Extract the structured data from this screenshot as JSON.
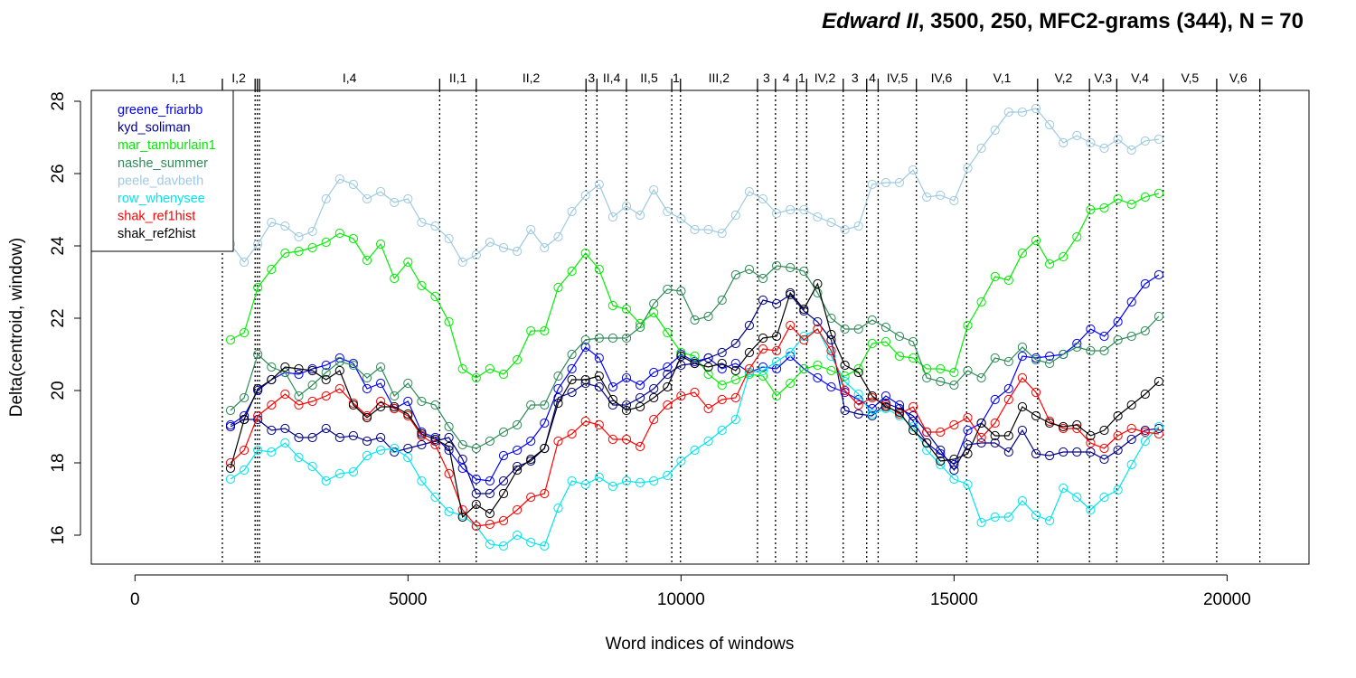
{
  "chart_data": {
    "type": "line",
    "title": {
      "italic": "Edward II",
      "rest": ", 3500, 250, MFC2-grams (344), N = 70"
    },
    "xlabel": "Word indices of windows",
    "ylabel": "Delta(centroid, window)",
    "xlim": [
      -800,
      21500
    ],
    "ylim": [
      15.2,
      28.3
    ],
    "xticks": [
      {
        "value": 0,
        "label": "0"
      },
      {
        "value": 5000,
        "label": "5000"
      },
      {
        "value": 10000,
        "label": "10000"
      },
      {
        "value": 15000,
        "label": "15000"
      },
      {
        "value": 20000,
        "label": "20000"
      }
    ],
    "yticks": [
      {
        "value": 16,
        "label": "16"
      },
      {
        "value": 18,
        "label": "18"
      },
      {
        "value": 20,
        "label": "20"
      },
      {
        "value": 22,
        "label": "22"
      },
      {
        "value": 24,
        "label": "24"
      },
      {
        "value": 26,
        "label": "26"
      },
      {
        "value": 28,
        "label": "28"
      }
    ],
    "scenes": [
      {
        "label": "I,1",
        "start": 0,
        "end": 1600
      },
      {
        "label": "I,2",
        "start": 1600,
        "end": 2200
      },
      {
        "label": "I,4",
        "start": 2280,
        "end": 5580
      },
      {
        "label": "II,1",
        "start": 5580,
        "end": 6250
      },
      {
        "label": "II,2",
        "start": 6250,
        "end": 8260
      },
      {
        "label": "3",
        "start": 8260,
        "end": 8460
      },
      {
        "label": "II,4",
        "start": 8460,
        "end": 9000
      },
      {
        "label": "II,5",
        "start": 9000,
        "end": 9830
      },
      {
        "label": "1",
        "start": 9830,
        "end": 9990
      },
      {
        "label": "III,2",
        "start": 9990,
        "end": 11400
      },
      {
        "label": "3",
        "start": 11400,
        "end": 11730
      },
      {
        "label": "4",
        "start": 11730,
        "end": 12120
      },
      {
        "label": "1",
        "start": 12120,
        "end": 12300
      },
      {
        "label": "IV,2",
        "start": 12300,
        "end": 12970
      },
      {
        "label": "3",
        "start": 12970,
        "end": 13400
      },
      {
        "label": "4",
        "start": 13400,
        "end": 13610
      },
      {
        "label": "IV,5",
        "start": 13610,
        "end": 14310
      },
      {
        "label": "IV,6",
        "start": 14310,
        "end": 15230
      },
      {
        "label": "V,1",
        "start": 15230,
        "end": 16530
      },
      {
        "label": "V,2",
        "start": 16530,
        "end": 17480
      },
      {
        "label": "V,3",
        "start": 17480,
        "end": 17980
      },
      {
        "label": "V,4",
        "start": 17980,
        "end": 18830
      },
      {
        "label": "V,5",
        "start": 18830,
        "end": 19810
      },
      {
        "label": "V,6",
        "start": 19810,
        "end": 20600
      }
    ],
    "scene_boundaries": [
      1600,
      2200,
      2240,
      2280,
      5580,
      6250,
      8260,
      8460,
      9000,
      9830,
      9990,
      11400,
      11730,
      12120,
      12300,
      12970,
      13400,
      13610,
      14310,
      15230,
      16530,
      17480,
      17980,
      18830,
      19810,
      20600
    ],
    "x": [
      1750,
      2000,
      2250,
      2500,
      2750,
      3000,
      3250,
      3500,
      3750,
      4000,
      4250,
      4500,
      4750,
      5000,
      5250,
      5500,
      5750,
      6000,
      6250,
      6500,
      6750,
      7000,
      7250,
      7500,
      7750,
      8000,
      8250,
      8500,
      8750,
      9000,
      9250,
      9500,
      9750,
      10000,
      10250,
      10500,
      10750,
      11000,
      11250,
      11500,
      11750,
      12000,
      12250,
      12500,
      12750,
      13000,
      13250,
      13500,
      13750,
      14000,
      14250,
      14500,
      14750,
      15000,
      15250,
      15500,
      15750,
      16000,
      16250,
      16500,
      16750,
      17000,
      17250,
      17500,
      17750,
      18000,
      18250,
      18500,
      18750
    ],
    "legend_position": "top-left",
    "series": [
      {
        "name": "greene_friarbb",
        "color": "#0000ff",
        "values": [
          19.05,
          19.3,
          20.0,
          20.3,
          20.5,
          20.45,
          20.6,
          20.7,
          20.9,
          20.75,
          20.05,
          20.2,
          19.5,
          19.7,
          18.85,
          18.7,
          18.35,
          17.85,
          17.55,
          17.5,
          18.2,
          18.35,
          18.6,
          19.1,
          20.05,
          20.6,
          21.2,
          20.9,
          20.1,
          20.35,
          20.15,
          20.5,
          20.65,
          21.0,
          20.8,
          20.9,
          20.6,
          20.75,
          20.5,
          20.65,
          20.6,
          20.95,
          20.6,
          20.35,
          20.1,
          19.95,
          19.75,
          19.5,
          19.85,
          19.6,
          19.15,
          18.55,
          18.25,
          17.95,
          18.9,
          19.1,
          19.75,
          20.05,
          20.95,
          20.9,
          20.95,
          21.0,
          21.3,
          21.7,
          21.5,
          21.9,
          22.45,
          22.95,
          23.2
        ]
      },
      {
        "name": "kyd_soliman",
        "color": "#00008b",
        "values": [
          19.0,
          19.2,
          19.2,
          18.9,
          18.95,
          18.7,
          18.7,
          18.95,
          18.7,
          18.75,
          18.6,
          18.7,
          18.3,
          18.4,
          18.5,
          18.6,
          18.7,
          18.1,
          17.15,
          17.15,
          17.5,
          17.9,
          18.05,
          18.4,
          19.8,
          19.95,
          20.2,
          20.1,
          19.6,
          19.6,
          19.8,
          20.05,
          20.45,
          20.7,
          20.75,
          20.9,
          21.05,
          21.3,
          21.8,
          22.5,
          22.4,
          22.65,
          22.2,
          21.9,
          21.4,
          19.45,
          19.35,
          19.3,
          19.65,
          19.5,
          19.3,
          18.85,
          18.35,
          17.8,
          18.5,
          18.55,
          18.55,
          18.3,
          18.9,
          18.25,
          18.2,
          18.3,
          18.3,
          18.3,
          18.1,
          18.35,
          18.65,
          18.9,
          18.95
        ]
      },
      {
        "name": "mar_tamburlain1",
        "color": "#00ee00",
        "values": [
          21.4,
          21.6,
          22.85,
          23.35,
          23.8,
          23.85,
          23.95,
          24.1,
          24.35,
          24.2,
          23.6,
          24.05,
          23.1,
          23.55,
          22.9,
          22.6,
          21.9,
          20.6,
          20.35,
          20.6,
          20.45,
          20.85,
          21.65,
          21.65,
          22.85,
          23.3,
          23.8,
          23.35,
          22.35,
          22.25,
          21.85,
          22.15,
          21.6,
          21.05,
          20.95,
          20.45,
          20.15,
          20.3,
          20.45,
          20.4,
          19.85,
          20.2,
          20.6,
          20.7,
          20.55,
          20.4,
          20.6,
          21.3,
          21.35,
          20.95,
          20.9,
          20.6,
          20.6,
          20.5,
          21.8,
          22.45,
          23.15,
          23.05,
          23.8,
          24.15,
          23.5,
          23.7,
          24.25,
          25.0,
          25.05,
          25.3,
          25.15,
          25.35,
          25.45
        ]
      },
      {
        "name": "nashe_summer",
        "color": "#2e8b57",
        "values": [
          19.45,
          19.8,
          21.0,
          20.65,
          20.5,
          19.85,
          20.15,
          20.5,
          20.8,
          20.7,
          20.35,
          20.65,
          19.85,
          20.2,
          19.7,
          19.6,
          19.0,
          18.5,
          18.4,
          18.6,
          18.85,
          19.05,
          19.6,
          19.6,
          20.4,
          21.0,
          21.4,
          21.45,
          21.45,
          21.45,
          21.75,
          22.4,
          22.8,
          22.75,
          21.95,
          22.05,
          22.5,
          23.2,
          23.35,
          23.1,
          23.45,
          23.4,
          23.3,
          22.7,
          22.0,
          21.7,
          21.7,
          21.95,
          21.75,
          21.5,
          21.35,
          20.35,
          20.25,
          20.15,
          20.55,
          20.35,
          20.9,
          20.8,
          21.2,
          20.85,
          20.75,
          21.0,
          21.2,
          21.1,
          21.1,
          21.4,
          21.5,
          21.65,
          22.05
        ]
      },
      {
        "name": "peele_davbeth",
        "color": "#9ecae1",
        "values": [
          24.05,
          23.55,
          24.05,
          24.65,
          24.55,
          24.25,
          24.4,
          25.3,
          25.85,
          25.7,
          25.3,
          25.5,
          25.2,
          25.3,
          24.65,
          24.55,
          24.2,
          23.55,
          23.75,
          24.1,
          23.95,
          23.85,
          24.45,
          23.95,
          24.25,
          24.95,
          25.4,
          25.7,
          24.8,
          25.1,
          24.85,
          25.55,
          24.95,
          24.75,
          24.45,
          24.45,
          24.35,
          24.85,
          25.5,
          25.3,
          24.9,
          25.0,
          25.0,
          24.8,
          24.65,
          24.45,
          24.55,
          25.7,
          25.75,
          25.75,
          26.1,
          25.35,
          25.4,
          25.25,
          26.15,
          26.7,
          27.2,
          27.7,
          27.7,
          27.8,
          27.35,
          26.85,
          27.05,
          26.85,
          26.7,
          26.95,
          26.65,
          26.9,
          26.95
        ]
      },
      {
        "name": "row_whenysee",
        "color": "#00e5ee",
        "values": [
          17.55,
          17.8,
          18.35,
          18.3,
          18.55,
          18.15,
          17.9,
          17.5,
          17.7,
          17.75,
          18.2,
          18.35,
          18.4,
          18.15,
          17.5,
          17.05,
          16.65,
          16.55,
          16.25,
          15.75,
          15.7,
          16.0,
          15.8,
          15.7,
          16.75,
          17.5,
          17.4,
          17.6,
          17.35,
          17.5,
          17.45,
          17.5,
          17.65,
          18.05,
          18.35,
          18.6,
          18.9,
          19.2,
          20.5,
          20.55,
          20.8,
          21.05,
          21.5,
          21.7,
          20.95,
          20.25,
          19.9,
          19.35,
          19.5,
          19.3,
          19.0,
          18.35,
          17.95,
          17.55,
          17.4,
          16.35,
          16.5,
          16.5,
          16.95,
          16.55,
          16.4,
          17.3,
          17.05,
          16.7,
          17.05,
          17.25,
          17.95,
          18.6,
          19.0
        ]
      },
      {
        "name": "shak_ref1hist",
        "color": "#ff0000",
        "values": [
          18.0,
          18.35,
          19.3,
          19.6,
          19.9,
          19.6,
          19.7,
          19.85,
          20.05,
          19.65,
          19.3,
          19.7,
          19.5,
          19.3,
          18.75,
          18.5,
          17.7,
          16.7,
          16.25,
          16.3,
          16.4,
          16.7,
          17.05,
          17.15,
          18.6,
          18.8,
          19.15,
          19.05,
          18.65,
          18.65,
          18.45,
          19.2,
          19.6,
          19.85,
          19.95,
          19.5,
          19.75,
          19.8,
          20.6,
          21.15,
          21.1,
          21.8,
          21.4,
          21.7,
          21.1,
          20.0,
          19.6,
          19.8,
          19.6,
          19.35,
          19.55,
          18.85,
          18.85,
          19.05,
          19.25,
          18.7,
          19.1,
          19.75,
          20.35,
          19.95,
          19.15,
          18.95,
          18.95,
          18.55,
          18.4,
          18.75,
          18.95,
          18.85,
          18.8
        ]
      },
      {
        "name": "shak_ref2hist",
        "color": "#000000",
        "values": [
          17.85,
          19.2,
          20.05,
          20.3,
          20.65,
          20.6,
          20.55,
          20.3,
          20.55,
          19.6,
          19.25,
          19.55,
          19.55,
          19.35,
          18.8,
          18.65,
          18.45,
          16.5,
          16.85,
          16.6,
          17.15,
          17.8,
          18.1,
          18.4,
          19.65,
          20.3,
          20.3,
          20.4,
          19.75,
          19.45,
          19.55,
          19.8,
          20.1,
          20.95,
          20.75,
          20.65,
          20.75,
          20.55,
          21.05,
          21.45,
          21.5,
          22.7,
          22.25,
          22.95,
          21.55,
          20.7,
          20.5,
          19.85,
          19.55,
          19.4,
          18.9,
          18.55,
          18.05,
          18.1,
          18.25,
          19.1,
          18.75,
          18.75,
          19.55,
          19.3,
          19.1,
          19.0,
          19.05,
          18.75,
          18.9,
          19.3,
          19.6,
          19.9,
          20.25
        ]
      }
    ]
  }
}
